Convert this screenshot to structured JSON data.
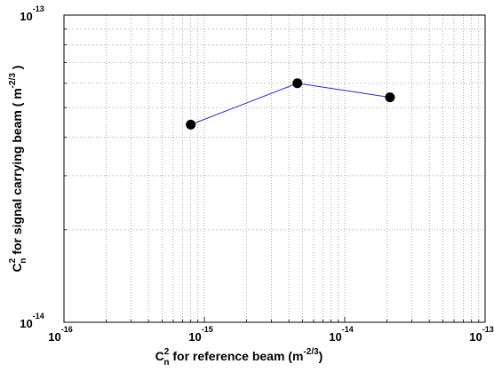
{
  "chart_data": {
    "type": "line",
    "xscale": "log",
    "yscale": "log",
    "xlim": [
      1e-16,
      1e-13
    ],
    "ylim": [
      1e-14,
      1e-13
    ],
    "grid": true,
    "x_ticks": [
      {
        "base": "10",
        "exp": "-16",
        "value": 1e-16
      },
      {
        "base": "10",
        "exp": "-15",
        "value": 1e-15
      },
      {
        "base": "10",
        "exp": "-14",
        "value": 1e-14
      },
      {
        "base": "10",
        "exp": "-13",
        "value": 1e-13
      }
    ],
    "y_ticks": [
      {
        "base": "10",
        "exp": "-14",
        "value": 1e-14
      },
      {
        "base": "10",
        "exp": "-13",
        "value": 1e-13
      }
    ],
    "xlabel": {
      "pre": "C",
      "sup": "2",
      "sub": "n",
      "text": " for reference beam (m",
      "unit_exp": "-2/3",
      "post": ")"
    },
    "ylabel": {
      "pre": "C",
      "sup": "2",
      "sub": "n",
      "text": " for signal carrying beam ( m",
      "unit_exp": "-2/3",
      "post": " )"
    },
    "series": [
      {
        "line_color": "#2b2bb3",
        "marker_color": "#000000",
        "points": [
          {
            "x": 8e-16,
            "y": 4.4e-14
          },
          {
            "x": 4.6e-15,
            "y": 6e-14
          },
          {
            "x": 2.1e-14,
            "y": 5.4e-14
          }
        ]
      }
    ]
  }
}
